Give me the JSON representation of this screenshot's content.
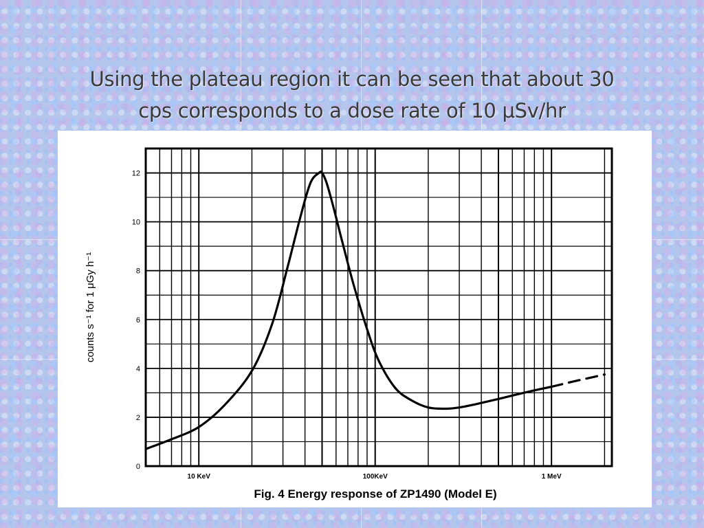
{
  "slide": {
    "title_line1": "Using the plateau region it can be seen that about 30",
    "title_line2": "cps corresponds to a dose rate of 10 μSv/hr"
  },
  "chart_data": {
    "type": "line",
    "title": "",
    "caption": "Fig. 4  Energy response of ZP1490 (Model E)",
    "xlabel": "",
    "ylabel": "counts s⁻¹ for 1 μGy h⁻¹",
    "x_scale": "log",
    "x_unit": "keV",
    "xlim": [
      5,
      2200
    ],
    "ylim": [
      0,
      13
    ],
    "grid": true,
    "y_ticks": [
      0,
      2,
      4,
      6,
      8,
      10,
      12
    ],
    "y_tick_labels": [
      "0",
      "2",
      "4",
      "6",
      "8",
      "10",
      "12"
    ],
    "x_ticks": [
      10,
      100,
      1000
    ],
    "x_tick_labels": [
      "10 KeV",
      "100KeV",
      "1 MeV"
    ],
    "series": [
      {
        "style": "solid",
        "x": [
          5,
          7,
          10,
          14,
          20,
          26,
          32,
          38,
          43,
          48,
          50,
          53,
          58,
          65,
          75,
          90,
          105,
          130,
          160,
          200,
          250,
          300,
          380,
          500,
          650,
          800,
          1000
        ],
        "y": [
          0.7,
          1.1,
          1.6,
          2.5,
          3.9,
          5.8,
          8.2,
          10.3,
          11.6,
          12.0,
          12.0,
          11.6,
          10.6,
          9.2,
          7.5,
          5.6,
          4.3,
          3.2,
          2.7,
          2.4,
          2.35,
          2.4,
          2.55,
          2.75,
          2.95,
          3.1,
          3.25
        ]
      },
      {
        "style": "dashed",
        "x": [
          1000,
          1400,
          2000
        ],
        "y": [
          3.25,
          3.5,
          3.75
        ]
      }
    ]
  }
}
